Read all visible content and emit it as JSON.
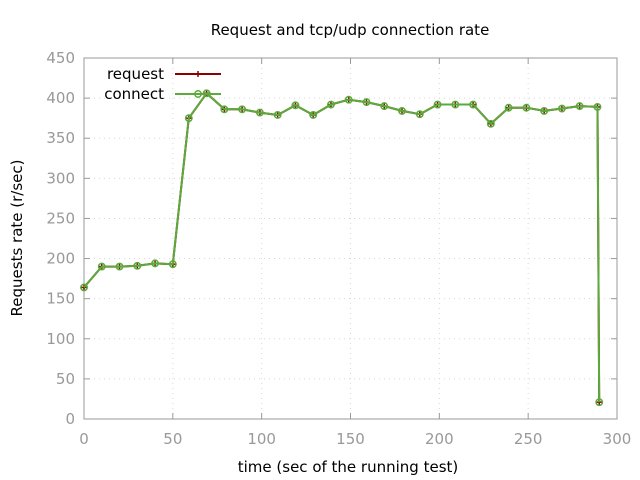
{
  "chart_data": {
    "type": "line",
    "title": "Request and tcp/udp connection rate",
    "xlabel": "time (sec of the running test)",
    "ylabel": "Requests rate (r/sec)",
    "xlim": [
      0,
      300
    ],
    "ylim": [
      0,
      450
    ],
    "xticks": [
      0,
      50,
      100,
      150,
      200,
      250,
      300
    ],
    "yticks": [
      0,
      50,
      100,
      150,
      200,
      250,
      300,
      350,
      400,
      450
    ],
    "grid": true,
    "legend_position": "top-left",
    "x": [
      0,
      10,
      20,
      30,
      40,
      50,
      59,
      69,
      79,
      89,
      99,
      109,
      119,
      129,
      139,
      149,
      159,
      169,
      179,
      189,
      199,
      209,
      219,
      229,
      239,
      249,
      259,
      269,
      279,
      289,
      290
    ],
    "series": [
      {
        "name": "request",
        "color": "#8b0000",
        "marker": "plus",
        "values": [
          164,
          190,
          190,
          191,
          194,
          193,
          375,
          406,
          386,
          386,
          382,
          379,
          391,
          379,
          392,
          398,
          395,
          390,
          384,
          380,
          392,
          392,
          392,
          368,
          388,
          388,
          384,
          387,
          390,
          389,
          21
        ]
      },
      {
        "name": "connect",
        "color": "#5aaa3c",
        "marker": "circle",
        "values": [
          164,
          190,
          190,
          191,
          194,
          193,
          375,
          406,
          386,
          386,
          382,
          379,
          391,
          379,
          392,
          398,
          395,
          390,
          384,
          380,
          392,
          392,
          392,
          368,
          388,
          388,
          384,
          387,
          390,
          389,
          21
        ]
      }
    ]
  }
}
